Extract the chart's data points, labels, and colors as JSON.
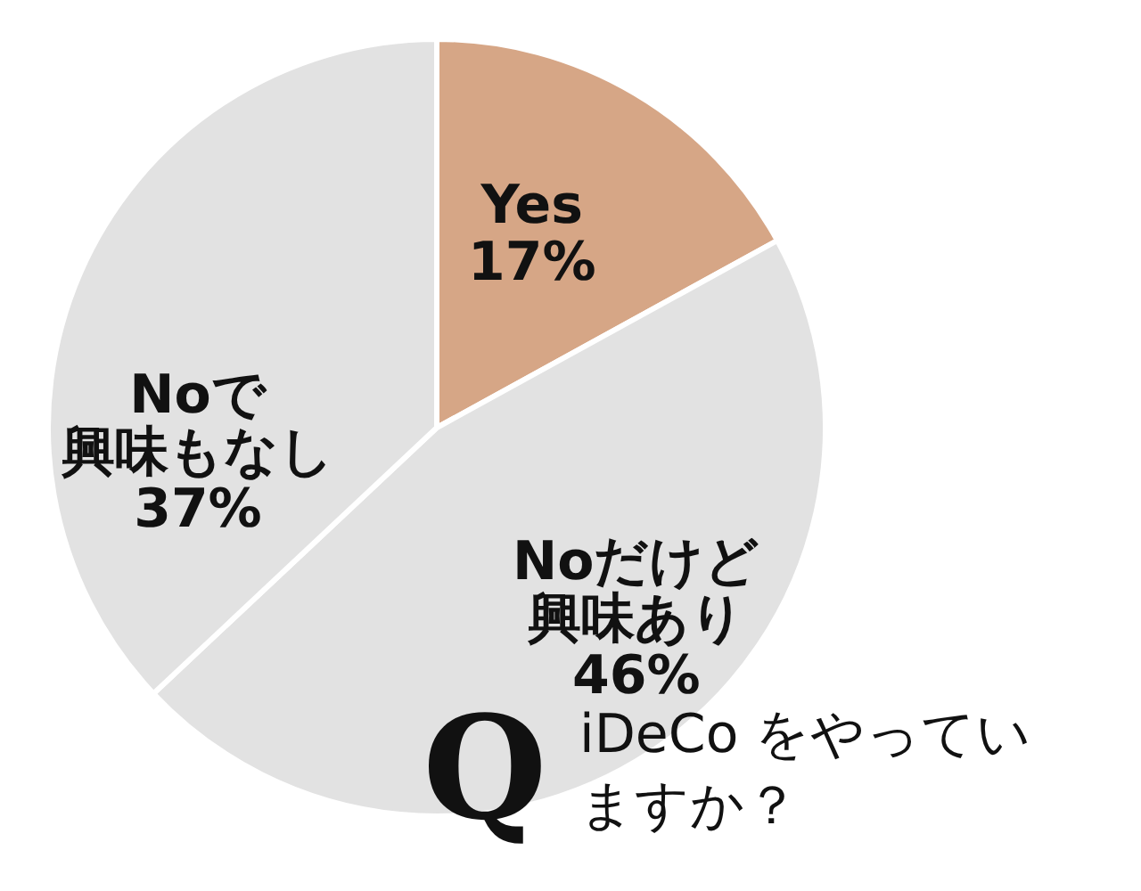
{
  "chart_data": {
    "type": "pie",
    "title": "iDeCo をやっていますか？",
    "annotations": [
      "Q"
    ],
    "categories": [
      "Yes",
      "Noだけど興味あり",
      "Noで興味もなし"
    ],
    "values": [
      17,
      46,
      37
    ],
    "value_labels": [
      "17%",
      "46%",
      "37%"
    ],
    "colors": [
      "#d6a686",
      "#e2e2e2",
      "#e2e2e2"
    ]
  }
}
